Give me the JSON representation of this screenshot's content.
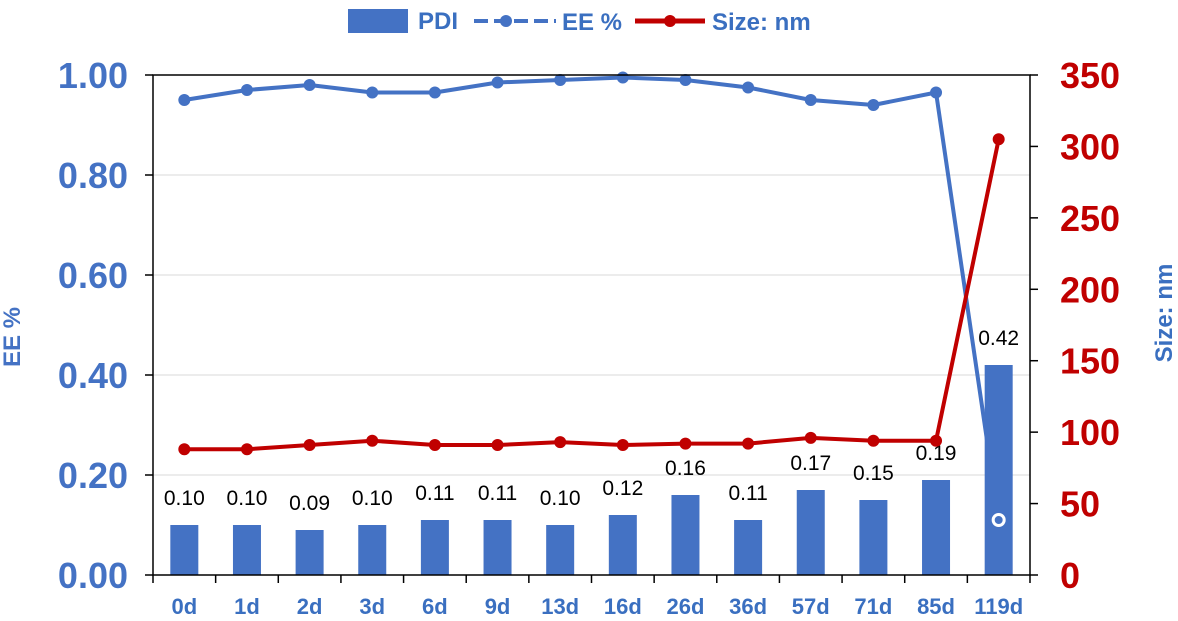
{
  "chart_data": {
    "type": "bar+line",
    "categories": [
      "0d",
      "1d",
      "2d",
      "3d",
      "6d",
      "9d",
      "13d",
      "16d",
      "26d",
      "36d",
      "57d",
      "71d",
      "85d",
      "119d"
    ],
    "series": [
      {
        "name": "PDI",
        "type": "bar",
        "axis": "left",
        "color": "#4472c4",
        "values": [
          0.1,
          0.1,
          0.09,
          0.1,
          0.11,
          0.11,
          0.1,
          0.12,
          0.16,
          0.11,
          0.17,
          0.15,
          0.19,
          0.42
        ],
        "labels": [
          "0.10",
          "0.10",
          "0.09",
          "0.10",
          "0.11",
          "0.11",
          "0.10",
          "0.12",
          "0.16",
          "0.11",
          "0.17",
          "0.15",
          "0.19",
          "0.42"
        ]
      },
      {
        "name": "EE %",
        "type": "line",
        "axis": "left",
        "color": "#4472c4",
        "style": "dashed-with-markers",
        "values": [
          0.95,
          0.97,
          0.98,
          0.965,
          0.965,
          0.985,
          0.99,
          0.995,
          0.99,
          0.975,
          0.95,
          0.94,
          0.965,
          0.11
        ]
      },
      {
        "name": "Size: nm",
        "type": "line",
        "axis": "right",
        "color": "#c00000",
        "values": [
          88,
          88,
          91,
          94,
          91,
          91,
          93,
          91,
          92,
          92,
          96,
          94,
          94,
          305
        ]
      }
    ],
    "y_left": {
      "label": "EE %",
      "ylim": [
        0,
        1.0
      ],
      "ticks": [
        "0.00",
        "0.20",
        "0.40",
        "0.60",
        "0.80",
        "1.00"
      ],
      "color": "#4472c4"
    },
    "y_right": {
      "label": "Size: nm",
      "ylim": [
        0,
        350
      ],
      "ticks": [
        "0",
        "50",
        "100",
        "150",
        "200",
        "250",
        "300",
        "350"
      ],
      "color": "#c00000"
    },
    "legend": {
      "position": "top",
      "entries": [
        "PDI",
        "EE %",
        "Size: nm"
      ]
    },
    "grid": "horizontal"
  }
}
